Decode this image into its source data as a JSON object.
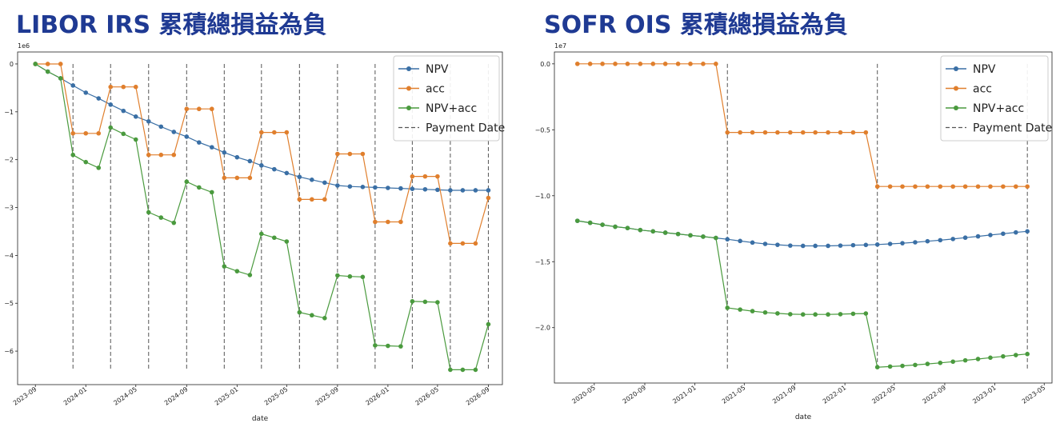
{
  "chart_data": [
    {
      "type": "line",
      "title": "LIBOR IRS 累積總損益為負",
      "xlabel": "date",
      "ylabel": "",
      "y_multiplier": "1e6",
      "xlim": [
        "2023-07-20",
        "2026-10-05"
      ],
      "ylim": [
        -6.7,
        0.25
      ],
      "yticks": [
        0,
        -1,
        -2,
        -3,
        -4,
        -5,
        -6
      ],
      "ytick_labels": [
        "0",
        "−1",
        "−2",
        "−3",
        "−4",
        "−5",
        "−6"
      ],
      "xticks": [
        "2023-09-01",
        "2024-01-01",
        "2024-05-01",
        "2024-09-01",
        "2025-01-01",
        "2025-05-01",
        "2025-09-01",
        "2026-01-01",
        "2026-05-01",
        "2026-09-01"
      ],
      "xtick_labels": [
        "2023-09",
        "2024-01",
        "2024-05",
        "2024-09",
        "2025-01",
        "2025-05",
        "2025-09",
        "2026-01",
        "2026-05",
        "2026-09"
      ],
      "payment_dates": [
        "2023-12-01",
        "2024-03-01",
        "2024-06-01",
        "2024-09-01",
        "2024-12-01",
        "2025-03-01",
        "2025-06-01",
        "2025-09-01",
        "2025-12-01",
        "2026-03-01",
        "2026-06-01",
        "2026-09-01"
      ],
      "payment_ylim": [
        -6.4,
        0
      ],
      "legend": {
        "placement": "top-right",
        "entries": [
          "NPV",
          "acc",
          "NPV+acc",
          "Payment Date"
        ]
      },
      "grid": false,
      "x": [
        "2023-09-01",
        "2023-10-01",
        "2023-11-01",
        "2023-12-01",
        "2024-01-01",
        "2024-02-01",
        "2024-03-01",
        "2024-04-01",
        "2024-05-01",
        "2024-06-01",
        "2024-07-01",
        "2024-08-01",
        "2024-09-01",
        "2024-10-01",
        "2024-11-01",
        "2024-12-01",
        "2025-01-01",
        "2025-02-01",
        "2025-03-01",
        "2025-04-01",
        "2025-05-01",
        "2025-06-01",
        "2025-07-01",
        "2025-08-01",
        "2025-09-01",
        "2025-10-01",
        "2025-11-01",
        "2025-12-01",
        "2026-01-01",
        "2026-02-01",
        "2026-03-01",
        "2026-04-01",
        "2026-05-01",
        "2026-06-01",
        "2026-07-01",
        "2026-08-01",
        "2026-09-01"
      ],
      "series": [
        {
          "name": "NPV",
          "color": "#3a6fa5",
          "values": [
            0,
            -0.16,
            -0.3,
            -0.45,
            -0.6,
            -0.72,
            -0.85,
            -0.98,
            -1.1,
            -1.2,
            -1.31,
            -1.42,
            -1.52,
            -1.64,
            -1.74,
            -1.85,
            -1.95,
            -2.03,
            -2.12,
            -2.2,
            -2.28,
            -2.36,
            -2.42,
            -2.48,
            -2.54,
            -2.56,
            -2.57,
            -2.58,
            -2.59,
            -2.6,
            -2.61,
            -2.62,
            -2.63,
            -2.64,
            -2.64,
            -2.64,
            -2.64
          ]
        },
        {
          "name": "acc",
          "color": "#e07f2d",
          "values": [
            0,
            0,
            0,
            -1.45,
            -1.45,
            -1.45,
            -0.48,
            -0.48,
            -0.48,
            -1.9,
            -1.9,
            -1.9,
            -0.94,
            -0.94,
            -0.94,
            -2.38,
            -2.38,
            -2.38,
            -1.43,
            -1.43,
            -1.43,
            -2.83,
            -2.83,
            -2.83,
            -1.88,
            -1.88,
            -1.88,
            -3.3,
            -3.3,
            -3.3,
            -2.35,
            -2.35,
            -2.35,
            -3.75,
            -3.75,
            -3.75,
            -2.8
          ]
        },
        {
          "name": "NPV+acc",
          "color": "#4a9a3e",
          "values": [
            0,
            -0.16,
            -0.3,
            -1.9,
            -2.05,
            -2.17,
            -1.33,
            -1.46,
            -1.58,
            -3.1,
            -3.21,
            -3.32,
            -2.46,
            -2.58,
            -2.68,
            -4.23,
            -4.33,
            -4.41,
            -3.55,
            -3.63,
            -3.71,
            -5.19,
            -5.25,
            -5.31,
            -4.42,
            -4.44,
            -4.45,
            -5.88,
            -5.89,
            -5.9,
            -4.96,
            -4.97,
            -4.98,
            -6.39,
            -6.39,
            -6.39,
            -5.44
          ]
        }
      ]
    },
    {
      "type": "line",
      "title": "SOFR OIS 累積總損益為負",
      "xlabel": "date",
      "ylabel": "",
      "y_multiplier": "1e7",
      "xlim": [
        "2020-01-25",
        "2023-05-20"
      ],
      "ylim": [
        -2.42,
        0.09
      ],
      "yticks": [
        0,
        -0.5,
        -1.0,
        -1.5,
        -2.0
      ],
      "ytick_labels": [
        "0.0",
        "−0.5",
        "−1.0",
        "−1.5",
        "−2.0"
      ],
      "xticks": [
        "2020-05-01",
        "2020-09-01",
        "2021-01-01",
        "2021-05-01",
        "2021-09-01",
        "2022-01-01",
        "2022-05-01",
        "2022-09-01",
        "2023-01-01",
        "2023-05-01"
      ],
      "xtick_labels": [
        "2020-05",
        "2020-09",
        "2021-01",
        "2021-05",
        "2021-09",
        "2022-01",
        "2022-05",
        "2022-09",
        "2023-01",
        "2023-05"
      ],
      "payment_dates": [
        "2021-03-21",
        "2022-03-21",
        "2023-03-21"
      ],
      "payment_ylim": [
        -2.32,
        0
      ],
      "legend": {
        "placement": "top-right",
        "entries": [
          "NPV",
          "acc",
          "NPV+acc",
          "Payment Date"
        ]
      },
      "grid": false,
      "x": [
        "2020-03-21",
        "2020-04-21",
        "2020-05-21",
        "2020-06-21",
        "2020-07-21",
        "2020-08-21",
        "2020-09-21",
        "2020-10-21",
        "2020-11-21",
        "2020-12-21",
        "2021-01-21",
        "2021-02-21",
        "2021-03-21",
        "2021-04-21",
        "2021-05-21",
        "2021-06-21",
        "2021-07-21",
        "2021-08-21",
        "2021-09-21",
        "2021-10-21",
        "2021-11-21",
        "2021-12-21",
        "2022-01-21",
        "2022-02-21",
        "2022-03-21",
        "2022-04-21",
        "2022-05-21",
        "2022-06-21",
        "2022-07-21",
        "2022-08-21",
        "2022-09-21",
        "2022-10-21",
        "2022-11-21",
        "2022-12-21",
        "2023-01-21",
        "2023-02-21",
        "2023-03-21"
      ],
      "series": [
        {
          "name": "NPV",
          "color": "#3a6fa5",
          "values": [
            -1.19,
            -1.205,
            -1.22,
            -1.235,
            -1.245,
            -1.26,
            -1.27,
            -1.28,
            -1.29,
            -1.3,
            -1.31,
            -1.32,
            -1.33,
            -1.343,
            -1.355,
            -1.365,
            -1.372,
            -1.378,
            -1.38,
            -1.38,
            -1.38,
            -1.378,
            -1.375,
            -1.373,
            -1.37,
            -1.365,
            -1.36,
            -1.353,
            -1.345,
            -1.337,
            -1.328,
            -1.318,
            -1.308,
            -1.298,
            -1.288,
            -1.278,
            -1.27
          ]
        },
        {
          "name": "acc",
          "color": "#e07f2d",
          "values": [
            0,
            0,
            0,
            0,
            0,
            0,
            0,
            0,
            0,
            0,
            0,
            0,
            -0.52,
            -0.52,
            -0.52,
            -0.52,
            -0.52,
            -0.52,
            -0.52,
            -0.52,
            -0.52,
            -0.52,
            -0.52,
            -0.52,
            -0.93,
            -0.93,
            -0.93,
            -0.93,
            -0.93,
            -0.93,
            -0.93,
            -0.93,
            -0.93,
            -0.93,
            -0.93,
            -0.93,
            -0.93
          ]
        },
        {
          "name": "NPV+acc",
          "color": "#4a9a3e",
          "values": [
            -1.19,
            -1.205,
            -1.22,
            -1.235,
            -1.245,
            -1.26,
            -1.27,
            -1.28,
            -1.29,
            -1.3,
            -1.31,
            -1.32,
            -1.85,
            -1.863,
            -1.875,
            -1.885,
            -1.892,
            -1.898,
            -1.9,
            -1.9,
            -1.9,
            -1.898,
            -1.895,
            -1.893,
            -2.3,
            -2.295,
            -2.29,
            -2.283,
            -2.275,
            -2.267,
            -2.258,
            -2.248,
            -2.238,
            -2.228,
            -2.218,
            -2.208,
            -2.2
          ]
        }
      ]
    }
  ]
}
